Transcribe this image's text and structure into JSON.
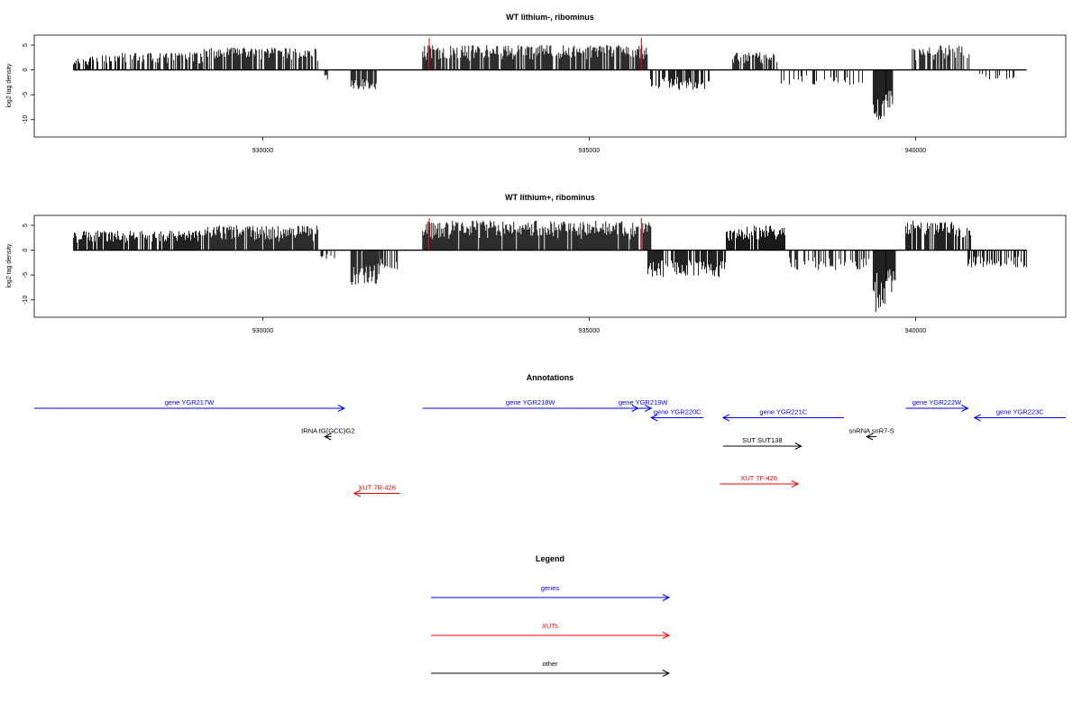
{
  "chart_data": [
    {
      "type": "bar",
      "title": "WT lithium-, ribominus",
      "xlabel": "",
      "ylabel": "log2 tag density",
      "xlim": [
        926500,
        942300
      ],
      "ylim": [
        -13.5,
        7
      ],
      "xticks": [
        930000,
        935000,
        940000
      ],
      "xtick_labels": [
        "930000",
        "935000",
        "940000"
      ],
      "yticks": [
        5,
        0,
        -5,
        -10
      ],
      "ytick_labels": [
        "5",
        "0",
        "-5",
        "-10"
      ],
      "grid": false,
      "x_range": [
        927100,
        941700
      ],
      "markers": [
        932550,
        935800
      ],
      "marker_color": "#ff0000",
      "segments": [
        {
          "from": 927100,
          "to": 927350,
          "sign": 1,
          "max": 2.5,
          "density": 0.55
        },
        {
          "from": 927350,
          "to": 927850,
          "sign": 1,
          "max": 3.0,
          "density": 0.45
        },
        {
          "from": 927850,
          "to": 929100,
          "sign": 1,
          "max": 3.5,
          "density": 0.7
        },
        {
          "from": 929100,
          "to": 930850,
          "sign": 1,
          "max": 4.5,
          "density": 0.8
        },
        {
          "from": 930950,
          "to": 931000,
          "sign": -1,
          "max": 2.0,
          "density": 0.8
        },
        {
          "from": 931350,
          "to": 931750,
          "sign": -1,
          "max": 4.0,
          "density": 0.75
        },
        {
          "from": 932450,
          "to": 935900,
          "sign": 1,
          "max": 5.0,
          "density": 0.85
        },
        {
          "from": 935900,
          "to": 936850,
          "sign": -1,
          "max": 4.0,
          "density": 0.65
        },
        {
          "from": 937200,
          "to": 937900,
          "sign": 1,
          "max": 3.5,
          "density": 0.7
        },
        {
          "from": 937900,
          "to": 939300,
          "sign": -1,
          "max": 3.0,
          "density": 0.3
        },
        {
          "from": 939350,
          "to": 939550,
          "sign": -1,
          "max": 11.0,
          "density": 1.0
        },
        {
          "from": 939550,
          "to": 939650,
          "sign": -1,
          "max": 8.0,
          "density": 1.0
        },
        {
          "from": 939950,
          "to": 940850,
          "sign": 1,
          "max": 5.0,
          "density": 0.6
        },
        {
          "from": 940900,
          "to": 941600,
          "sign": -1,
          "max": 2.0,
          "density": 0.25
        }
      ]
    },
    {
      "type": "bar",
      "title": "WT lithium+, ribominus",
      "xlabel": "",
      "ylabel": "log2 tag density",
      "xlim": [
        926500,
        942300
      ],
      "ylim": [
        -13.5,
        7
      ],
      "xticks": [
        930000,
        935000,
        940000
      ],
      "xtick_labels": [
        "930000",
        "935000",
        "940000"
      ],
      "yticks": [
        5,
        0,
        -5,
        -10
      ],
      "ytick_labels": [
        "5",
        "0",
        "-5",
        "-10"
      ],
      "grid": false,
      "x_range": [
        927100,
        941700
      ],
      "markers": [
        932550,
        935800
      ],
      "marker_color": "#ff0000",
      "segments": [
        {
          "from": 927100,
          "to": 929100,
          "sign": 1,
          "max": 4.0,
          "density": 0.9
        },
        {
          "from": 929100,
          "to": 930850,
          "sign": 1,
          "max": 5.0,
          "density": 0.95
        },
        {
          "from": 930850,
          "to": 931100,
          "sign": -1,
          "max": 2.0,
          "density": 0.5
        },
        {
          "from": 931350,
          "to": 931800,
          "sign": -1,
          "max": 7.0,
          "density": 0.85
        },
        {
          "from": 931800,
          "to": 932100,
          "sign": -1,
          "max": 4.0,
          "density": 0.5
        },
        {
          "from": 932450,
          "to": 935950,
          "sign": 1,
          "max": 6.0,
          "density": 0.95
        },
        {
          "from": 935900,
          "to": 937100,
          "sign": -1,
          "max": 5.5,
          "density": 0.8
        },
        {
          "from": 937100,
          "to": 938000,
          "sign": 1,
          "max": 5.0,
          "density": 0.85
        },
        {
          "from": 938000,
          "to": 939300,
          "sign": -1,
          "max": 4.0,
          "density": 0.55
        },
        {
          "from": 939350,
          "to": 939550,
          "sign": -1,
          "max": 12.5,
          "density": 1.0
        },
        {
          "from": 939550,
          "to": 939700,
          "sign": -1,
          "max": 9.0,
          "density": 1.0
        },
        {
          "from": 939850,
          "to": 940850,
          "sign": 1,
          "max": 6.0,
          "density": 0.8
        },
        {
          "from": 940800,
          "to": 941700,
          "sign": -1,
          "max": 3.5,
          "density": 0.6
        }
      ]
    }
  ],
  "annotations": {
    "title": "Annotations",
    "xlim": [
      926500,
      942300
    ],
    "items": [
      {
        "label": "gene YGR217W",
        "from": 926500,
        "to": 931250,
        "dir": "right",
        "track": 0,
        "category": "genes"
      },
      {
        "label": "gene YGR218W",
        "from": 932450,
        "to": 935750,
        "dir": "right",
        "track": 0,
        "category": "genes"
      },
      {
        "label": "gene YGR219W",
        "from": 935700,
        "to": 935950,
        "dir": "right",
        "track": 0,
        "category": "genes"
      },
      {
        "label": "gene YGR220C",
        "from": 935950,
        "to": 936750,
        "dir": "left",
        "track": 1,
        "category": "genes"
      },
      {
        "label": "gene YGR221C",
        "from": 937050,
        "to": 938900,
        "dir": "left",
        "track": 1,
        "category": "genes"
      },
      {
        "label": "gene YGR222W",
        "from": 939850,
        "to": 940800,
        "dir": "right",
        "track": 0,
        "category": "genes"
      },
      {
        "label": "gene YGR223C",
        "from": 940900,
        "to": 942300,
        "dir": "left",
        "track": 1,
        "category": "genes"
      },
      {
        "label": "tRNA tG(GCC)G2",
        "from": 930950,
        "to": 931050,
        "dir": "left",
        "track": 3,
        "category": "other"
      },
      {
        "label": "snRNA snR7-S",
        "from": 939250,
        "to": 939400,
        "dir": "left",
        "track": 3,
        "category": "other"
      },
      {
        "label": "SUT SUT138",
        "from": 937050,
        "to": 938250,
        "dir": "right",
        "track": 4,
        "category": "other"
      },
      {
        "label": "XUT 7F-426",
        "from": 937000,
        "to": 938200,
        "dir": "right",
        "track": 8,
        "category": "xuts"
      },
      {
        "label": "XUT 7R-426",
        "from": 931400,
        "to": 932100,
        "dir": "left",
        "track": 9,
        "category": "xuts"
      }
    ]
  },
  "legend": {
    "title": "Legend",
    "entries": [
      {
        "label": "genes",
        "color": "#0000ff"
      },
      {
        "label": "XUTs",
        "color": "#ff0000"
      },
      {
        "label": "other",
        "color": "#000000"
      }
    ]
  },
  "colors": {
    "genes": "#0000ff",
    "xuts": "#ff0000",
    "other": "#000000",
    "bars": "#000000"
  }
}
